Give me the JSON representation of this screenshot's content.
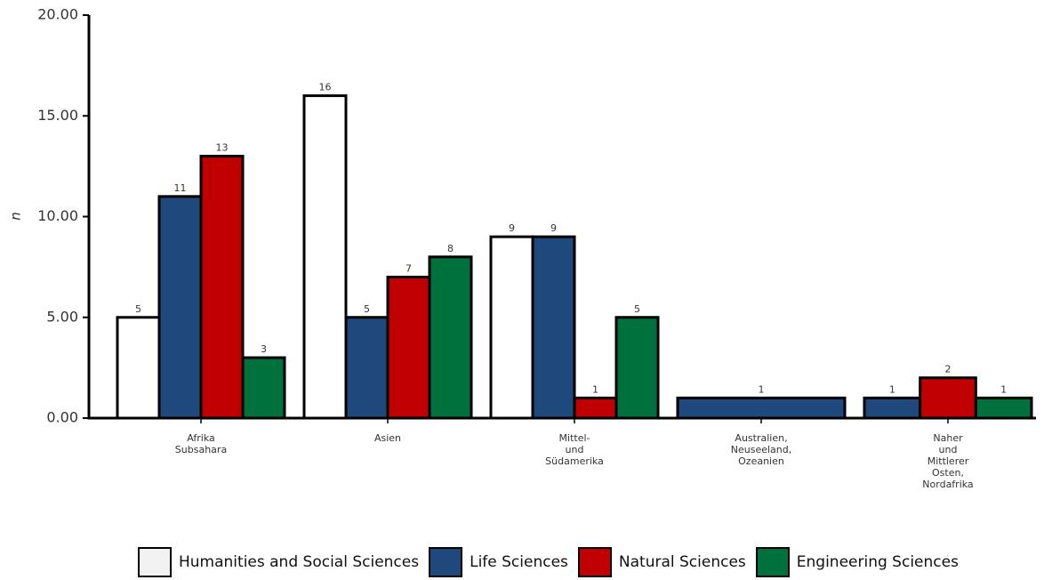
{
  "chart_data": {
    "type": "bar",
    "y_label": "n",
    "categories": [
      "Afrika\nSubsahara",
      "Asien",
      "Mittel-\nund\nSüdamerika",
      "Australien,\nNeuseeland,\nOzeanien",
      "Naher\nund\nMittlerer\nOsten,\nNordafrika"
    ],
    "series": [
      {
        "name": "Humanities and Social Sciences",
        "color": "#ffffff",
        "values": [
          5,
          16,
          9,
          null,
          null
        ]
      },
      {
        "name": "Life Sciences",
        "color": "#1f497d",
        "values": [
          11,
          5,
          9,
          1,
          1
        ]
      },
      {
        "name": "Natural Sciences",
        "color": "#c00000",
        "values": [
          13,
          7,
          1,
          null,
          2
        ]
      },
      {
        "name": "Engineering Sciences",
        "color": "#00703c",
        "values": [
          3,
          8,
          5,
          null,
          1
        ]
      }
    ],
    "ylim": [
      0,
      20
    ],
    "yticks": [
      {
        "value": 0,
        "label": "0.00"
      },
      {
        "value": 5,
        "label": "5.00"
      },
      {
        "value": 10,
        "label": "10.00"
      },
      {
        "value": 15,
        "label": "15.00"
      },
      {
        "value": 20,
        "label": "20.00"
      }
    ],
    "legend": "bottom"
  }
}
